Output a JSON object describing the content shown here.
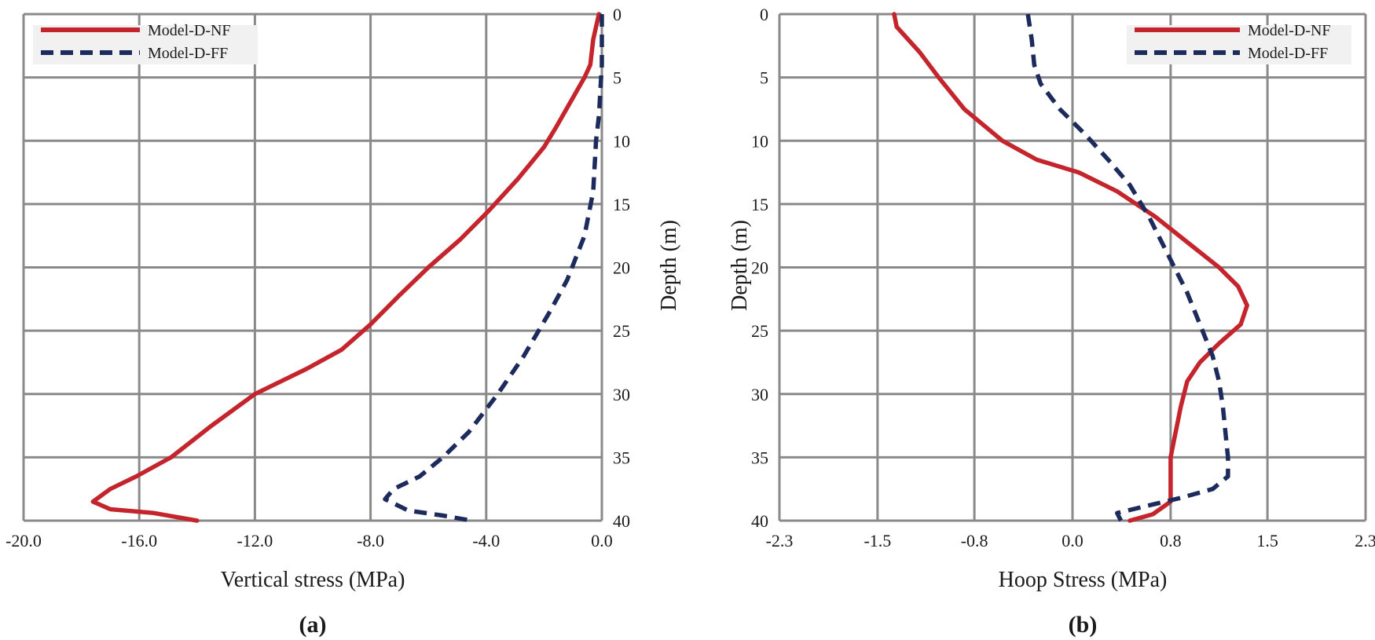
{
  "chart_data": [
    {
      "type": "line",
      "panel_label": "(a)",
      "xlabel": "Vertical stress (MPa)",
      "ylabel": "Depth (m)",
      "xlim": [
        -20,
        0
      ],
      "ylim": [
        0,
        40
      ],
      "y_inverted": true,
      "x_ticks": [
        -20,
        -16,
        -12,
        -8,
        -4,
        0
      ],
      "x_tick_labels": [
        "-20.0",
        "-16.0",
        "-12.0",
        "-8.0",
        "-4.0",
        "0.0"
      ],
      "y_ticks": [
        0,
        5,
        10,
        15,
        20,
        25,
        30,
        35,
        40
      ],
      "y_tick_labels": [
        "0",
        "5",
        "10",
        "15",
        "20",
        "25",
        "30",
        "35",
        "40"
      ],
      "ylabel_side": "right",
      "grid": true,
      "legend_position": "top-left",
      "series": [
        {
          "name": "Model-D-NF",
          "color": "#c4242b",
          "style": "solid",
          "points": [
            [
              -0.1,
              0
            ],
            [
              -0.2,
              1
            ],
            [
              -0.3,
              2
            ],
            [
              -0.4,
              4
            ],
            [
              -0.6,
              5
            ],
            [
              -1.1,
              7
            ],
            [
              -1.6,
              9
            ],
            [
              -2.0,
              10.5
            ],
            [
              -2.9,
              13
            ],
            [
              -3.9,
              15.5
            ],
            [
              -4.9,
              17.8
            ],
            [
              -6.0,
              20
            ],
            [
              -7.0,
              22.2
            ],
            [
              -8.0,
              24.5
            ],
            [
              -9.0,
              26.5
            ],
            [
              -10.2,
              28
            ],
            [
              -12.0,
              30
            ],
            [
              -13.5,
              32.5
            ],
            [
              -14.9,
              35
            ],
            [
              -16.1,
              36.5
            ],
            [
              -17.0,
              37.5
            ],
            [
              -17.6,
              38.5
            ],
            [
              -17.0,
              39.1
            ],
            [
              -15.5,
              39.4
            ],
            [
              -14.0,
              40
            ]
          ]
        },
        {
          "name": "Model-D-FF",
          "color": "#1c2a5c",
          "style": "dashed",
          "points": [
            [
              0,
              0
            ],
            [
              0,
              2
            ],
            [
              0,
              4
            ],
            [
              -0.1,
              8
            ],
            [
              -0.2,
              10
            ],
            [
              -0.3,
              14
            ],
            [
              -0.6,
              17.5
            ],
            [
              -1.2,
              21
            ],
            [
              -1.8,
              23.5
            ],
            [
              -2.7,
              27
            ],
            [
              -3.6,
              30
            ],
            [
              -4.6,
              33
            ],
            [
              -5.5,
              35
            ],
            [
              -6.3,
              36.5
            ],
            [
              -7.2,
              37.5
            ],
            [
              -7.5,
              38.3
            ],
            [
              -6.7,
              39.2
            ],
            [
              -5.5,
              39.6
            ],
            [
              -4.5,
              40
            ]
          ]
        }
      ]
    },
    {
      "type": "line",
      "panel_label": "(b)",
      "xlabel": "Hoop Stress (MPa)",
      "ylabel": "Depth (m)",
      "xlim": [
        -2.3,
        2.3
      ],
      "ylim": [
        0,
        40
      ],
      "y_inverted": true,
      "x_ticks": [
        -2.3,
        -1.53,
        -0.77,
        0,
        0.77,
        1.53,
        2.3
      ],
      "x_tick_labels": [
        "-2.3",
        "-1.5",
        "-0.8",
        "0.0",
        "0.8",
        "1.5",
        "2.3"
      ],
      "y_ticks": [
        0,
        5,
        10,
        15,
        20,
        25,
        30,
        35,
        40
      ],
      "y_tick_labels": [
        "0",
        "5",
        "10",
        "15",
        "20",
        "25",
        "30",
        "35",
        "40"
      ],
      "ylabel_side": "left",
      "grid": true,
      "legend_position": "top-right",
      "series": [
        {
          "name": "Model-D-NF",
          "color": "#c4242b",
          "style": "solid",
          "points": [
            [
              -1.4,
              0
            ],
            [
              -1.38,
              1
            ],
            [
              -1.2,
              3
            ],
            [
              -1.05,
              5
            ],
            [
              -0.85,
              7.5
            ],
            [
              -0.55,
              10
            ],
            [
              -0.28,
              11.5
            ],
            [
              0.05,
              12.5
            ],
            [
              0.35,
              14
            ],
            [
              0.65,
              16
            ],
            [
              0.9,
              18
            ],
            [
              1.15,
              20
            ],
            [
              1.3,
              21.5
            ],
            [
              1.37,
              23
            ],
            [
              1.32,
              24.5
            ],
            [
              1.15,
              26
            ],
            [
              1.0,
              27.5
            ],
            [
              0.9,
              29
            ],
            [
              0.85,
              31
            ],
            [
              0.8,
              33.5
            ],
            [
              0.77,
              35
            ],
            [
              0.77,
              37
            ],
            [
              0.77,
              38.5
            ],
            [
              0.63,
              39.5
            ],
            [
              0.45,
              40
            ]
          ]
        },
        {
          "name": "Model-D-FF",
          "color": "#1c2a5c",
          "style": "dashed",
          "points": [
            [
              -0.35,
              0
            ],
            [
              -0.32,
              2
            ],
            [
              -0.3,
              4
            ],
            [
              -0.25,
              5.5
            ],
            [
              -0.1,
              7.5
            ],
            [
              0.1,
              9.5
            ],
            [
              0.28,
              11.5
            ],
            [
              0.45,
              13.5
            ],
            [
              0.6,
              16
            ],
            [
              0.75,
              19
            ],
            [
              0.9,
              22
            ],
            [
              1.0,
              24.5
            ],
            [
              1.1,
              27
            ],
            [
              1.15,
              29
            ],
            [
              1.18,
              31
            ],
            [
              1.2,
              33
            ],
            [
              1.22,
              35
            ],
            [
              1.22,
              36.5
            ],
            [
              1.1,
              37.5
            ],
            [
              0.85,
              38.2
            ],
            [
              0.6,
              38.8
            ],
            [
              0.35,
              39.4
            ],
            [
              0.38,
              40
            ]
          ]
        }
      ]
    }
  ]
}
